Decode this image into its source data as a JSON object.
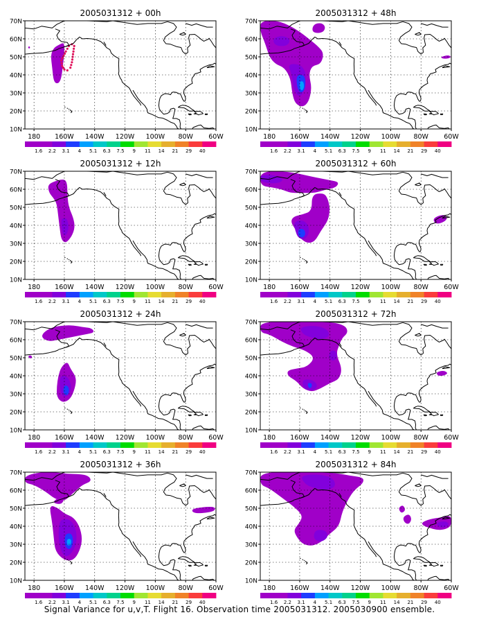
{
  "figure": {
    "caption": "Signal Variance for u,v,T. Flight 16. Observation time 2005031312. 2005030900 ensemble.",
    "axes": {
      "lat_ticks": [
        "10N",
        "20N",
        "30N",
        "40N",
        "50N",
        "60N",
        "70N"
      ],
      "lon_ticks": [
        "180",
        "160W",
        "140W",
        "120W",
        "100W",
        "80W",
        "60W"
      ],
      "lat_range": [
        10,
        70
      ],
      "lon_range": [
        -186,
        -60
      ]
    },
    "colorbar": {
      "labels": [
        "1.6",
        "2.2",
        "3.1",
        "4",
        "5.1",
        "6.3",
        "7.5",
        "9",
        "11",
        "14",
        "21",
        "29",
        "40"
      ],
      "colors": [
        "#a000c8",
        "#8200dc",
        "#1e3cff",
        "#00a0ff",
        "#00c8c8",
        "#00d28c",
        "#00dc00",
        "#a0e632",
        "#e6dc32",
        "#e6af2d",
        "#f08228",
        "#fa3c3c",
        "#f00082"
      ]
    },
    "fill_colors": {
      "level1": "#a000c8",
      "level2": "#8200dc",
      "level3": "#1e3cff",
      "level4": "#00a0ff"
    },
    "obs_marker_color": "#e0105a",
    "panels": [
      {
        "title": "2005031312 + 00h",
        "lead": "00h"
      },
      {
        "title": "2005031312 + 48h",
        "lead": "48h"
      },
      {
        "title": "2005031312 + 12h",
        "lead": "12h"
      },
      {
        "title": "2005031312 + 60h",
        "lead": "60h"
      },
      {
        "title": "2005031312 + 24h",
        "lead": "24h"
      },
      {
        "title": "2005031312 + 72h",
        "lead": "72h"
      },
      {
        "title": "2005031312 + 36h",
        "lead": "36h"
      },
      {
        "title": "2005031312 + 84h",
        "lead": "84h"
      }
    ]
  }
}
